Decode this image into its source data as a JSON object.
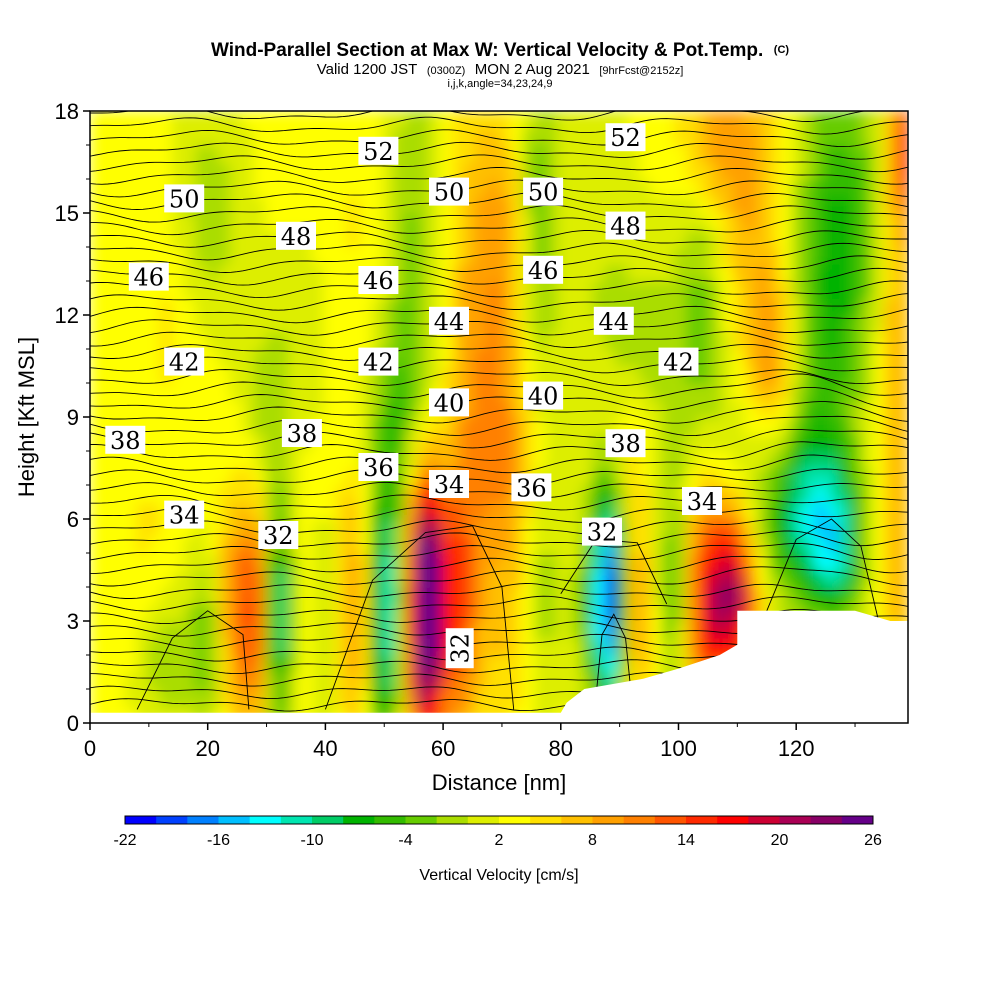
{
  "chart_data": {
    "type": "heatmap",
    "title": "Wind-Parallel Section at Max W: Vertical Velocity & Pot.Temp.",
    "title_mark": "(C)",
    "subtitle": {
      "valid": "Valid 1200 JST",
      "utc": "(0300Z)",
      "date": "MON 2 Aug 2021",
      "fcst": "[9hrFcst@2152z]"
    },
    "subtitle2": "i,j,k,angle=34,23,24,9",
    "xlabel": "Distance [nm]",
    "ylabel": "Height [Kft MSL]",
    "xlim": [
      0,
      139
    ],
    "ylim": [
      0,
      18
    ],
    "x_ticks": [
      0,
      20,
      40,
      60,
      80,
      100,
      120
    ],
    "y_ticks": [
      0,
      3,
      6,
      9,
      12,
      15,
      18
    ],
    "colorbar": {
      "label": "Vertical Velocity [cm/s]",
      "ticks": [
        "-22",
        "-16",
        "-10",
        "-4",
        "2",
        "8",
        "14",
        "20",
        "26"
      ],
      "colors": [
        "#0000ff",
        "#0040ff",
        "#0080ff",
        "#00bfff",
        "#00ffff",
        "#00e5b0",
        "#00cc66",
        "#00b300",
        "#33bb00",
        "#66cc00",
        "#aadd00",
        "#ddee00",
        "#ffff00",
        "#ffe000",
        "#ffc000",
        "#ffa000",
        "#ff8000",
        "#ff5500",
        "#ff2a00",
        "#ff0000",
        "#cc0033",
        "#aa0055",
        "#880066",
        "#660088"
      ]
    },
    "contour_labels": [
      {
        "x": 16,
        "y": 15.4,
        "text": "50"
      },
      {
        "x": 49,
        "y": 16.8,
        "text": "52"
      },
      {
        "x": 91,
        "y": 17.2,
        "text": "52"
      },
      {
        "x": 61,
        "y": 15.6,
        "text": "50"
      },
      {
        "x": 77,
        "y": 15.6,
        "text": "50"
      },
      {
        "x": 35,
        "y": 14.3,
        "text": "48"
      },
      {
        "x": 91,
        "y": 14.6,
        "text": "48"
      },
      {
        "x": 10,
        "y": 13.1,
        "text": "46"
      },
      {
        "x": 49,
        "y": 13.0,
        "text": "46"
      },
      {
        "x": 77,
        "y": 13.3,
        "text": "46"
      },
      {
        "x": 61,
        "y": 11.8,
        "text": "44"
      },
      {
        "x": 89,
        "y": 11.8,
        "text": "44"
      },
      {
        "x": 16,
        "y": 10.6,
        "text": "42"
      },
      {
        "x": 49,
        "y": 10.6,
        "text": "42"
      },
      {
        "x": 100,
        "y": 10.6,
        "text": "42"
      },
      {
        "x": 61,
        "y": 9.4,
        "text": "40"
      },
      {
        "x": 77,
        "y": 9.6,
        "text": "40"
      },
      {
        "x": 6,
        "y": 8.3,
        "text": "38"
      },
      {
        "x": 36,
        "y": 8.5,
        "text": "38"
      },
      {
        "x": 91,
        "y": 8.2,
        "text": "38"
      },
      {
        "x": 49,
        "y": 7.5,
        "text": "36"
      },
      {
        "x": 75,
        "y": 6.9,
        "text": "36"
      },
      {
        "x": 16,
        "y": 6.1,
        "text": "34"
      },
      {
        "x": 61,
        "y": 7.0,
        "text": "34"
      },
      {
        "x": 104,
        "y": 6.5,
        "text": "34"
      },
      {
        "x": 32,
        "y": 5.5,
        "text": "32"
      },
      {
        "x": 87,
        "y": 5.6,
        "text": "32"
      },
      {
        "x": 63,
        "y": 2.2,
        "text": "32"
      }
    ],
    "terrain": [
      [
        0,
        0.3
      ],
      [
        80,
        0.3
      ],
      [
        81,
        0.6
      ],
      [
        84,
        1.0
      ],
      [
        94,
        1.3
      ],
      [
        100,
        1.6
      ],
      [
        107,
        2.0
      ],
      [
        110,
        2.3
      ],
      [
        110,
        3.3
      ],
      [
        130,
        3.3
      ],
      [
        136,
        3.0
      ],
      [
        139,
        3.0
      ]
    ],
    "grid": false,
    "legend": "bottom"
  }
}
